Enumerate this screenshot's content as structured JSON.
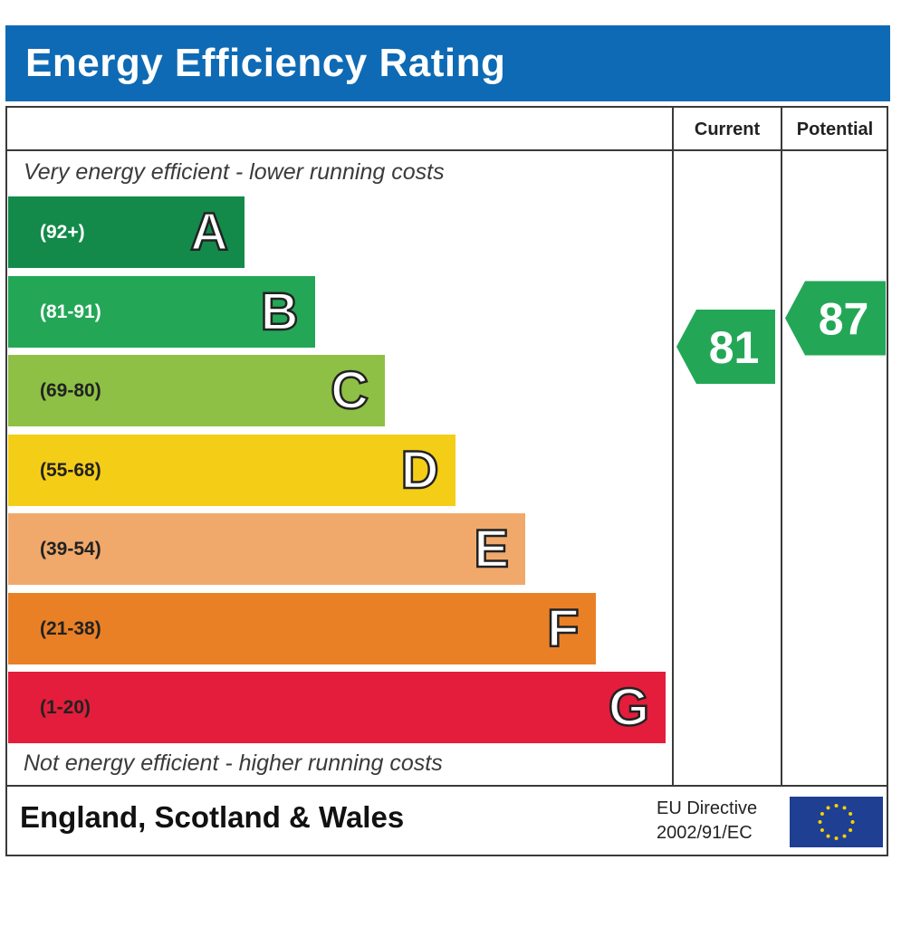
{
  "title": "Energy Efficiency Rating",
  "columns": {
    "current": "Current",
    "potential": "Potential"
  },
  "top_caption": "Very energy efficient - lower running costs",
  "bottom_caption": "Not energy efficient - higher running costs",
  "footer": {
    "region": "England, Scotland & Wales",
    "directive_line1": "EU Directive",
    "directive_line2": "2002/91/EC"
  },
  "chart_data": {
    "type": "bar",
    "title": "Energy Efficiency Rating",
    "categories": [
      "A",
      "B",
      "C",
      "D",
      "E",
      "F",
      "G"
    ],
    "bands": [
      {
        "letter": "A",
        "range": "(92+)",
        "color": "#138A4A",
        "text_color": "#ffffff"
      },
      {
        "letter": "B",
        "range": "(81-91)",
        "color": "#23A757",
        "text_color": "#ffffff"
      },
      {
        "letter": "C",
        "range": "(69-80)",
        "color": "#8DC045",
        "text_color": "#222222"
      },
      {
        "letter": "D",
        "range": "(55-68)",
        "color": "#F4CD17",
        "text_color": "#222222"
      },
      {
        "letter": "E",
        "range": "(39-54)",
        "color": "#F0A96B",
        "text_color": "#222222"
      },
      {
        "letter": "F",
        "range": "(21-38)",
        "color": "#E98025",
        "text_color": "#222222"
      },
      {
        "letter": "G",
        "range": "(1-20)",
        "color": "#E31D3B",
        "text_color": "#222222"
      }
    ],
    "current": {
      "label": "Current",
      "value": 81,
      "band": "B",
      "color": "#23A757"
    },
    "potential": {
      "label": "Potential",
      "value": 87,
      "band": "B",
      "color": "#23A757"
    },
    "scale_min": 1,
    "scale_max": 100
  }
}
